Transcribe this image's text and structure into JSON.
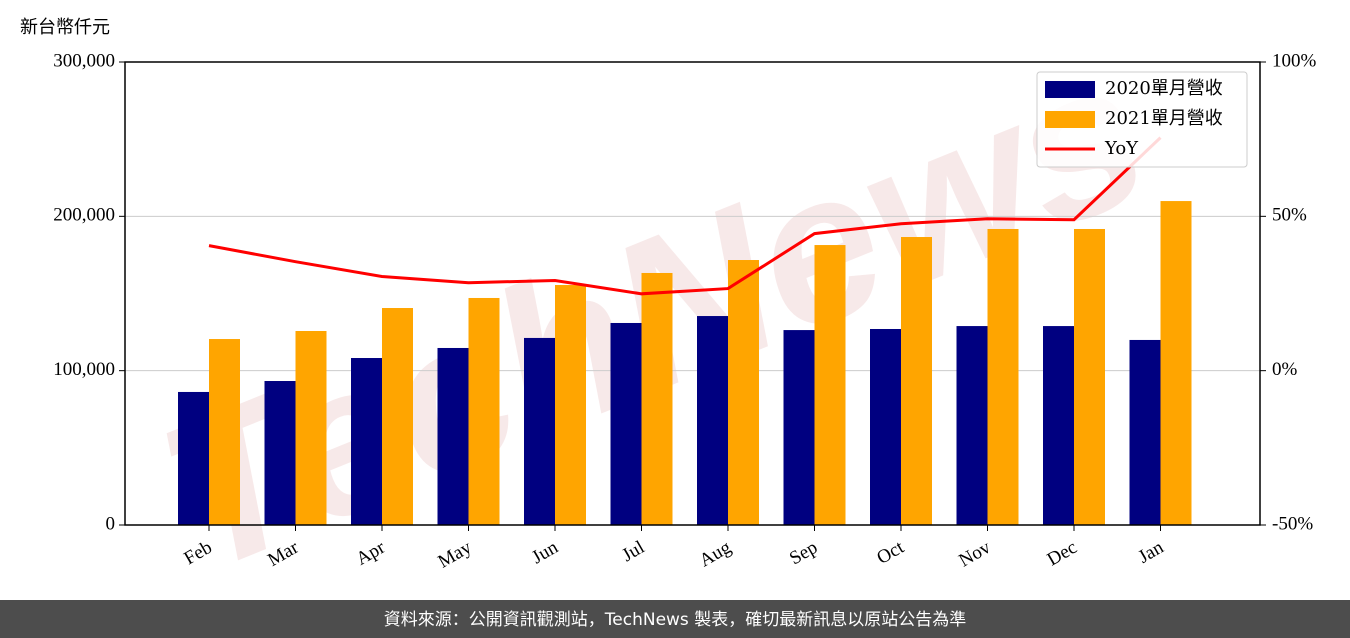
{
  "chart_data": {
    "type": "bar",
    "y_unit_label": "新台幣仟元",
    "watermark": "TechNews",
    "footer": "資料來源：公開資訊觀測站，TechNews 製表，確切最新訊息以原站公告為準",
    "categories": [
      "Feb",
      "Mar",
      "Apr",
      "May",
      "Jun",
      "Jul",
      "Aug",
      "Sep",
      "Oct",
      "Nov",
      "Dec",
      "Jan"
    ],
    "series": [
      {
        "name": "2020單月營收",
        "color": "#000080",
        "type": "bar",
        "values": [
          86200,
          93300,
          108200,
          114700,
          121200,
          130900,
          135400,
          126300,
          127000,
          128900,
          128900,
          119900
        ]
      },
      {
        "name": "2021單月營收",
        "color": "#ffa500",
        "type": "bar",
        "values": [
          120500,
          125700,
          140600,
          147100,
          155500,
          163300,
          171700,
          181400,
          186600,
          191800,
          191800,
          209900
        ]
      },
      {
        "name": "YoY",
        "color": "#ff0000",
        "type": "line",
        "axis": "y2",
        "values": [
          40.5,
          35.3,
          30.5,
          28.5,
          29.2,
          24.9,
          26.6,
          44.4,
          47.6,
          49.2,
          48.9,
          75.5
        ]
      }
    ],
    "ylim": [
      0,
      300000
    ],
    "yticks": [
      0,
      {
        "value": 100000,
        "label": "100,000"
      },
      {
        "value": 200000,
        "label": "200,000"
      },
      {
        "value": 300000,
        "label": "300,000"
      }
    ],
    "y2lim": [
      -50,
      100
    ],
    "y2ticks": [
      {
        "value": -50,
        "label": "-50%"
      },
      {
        "value": 0,
        "label": "0%"
      },
      {
        "value": 50,
        "label": "50%"
      },
      {
        "value": 100,
        "label": "100%"
      }
    ],
    "grid": true,
    "legend": "upper right"
  }
}
